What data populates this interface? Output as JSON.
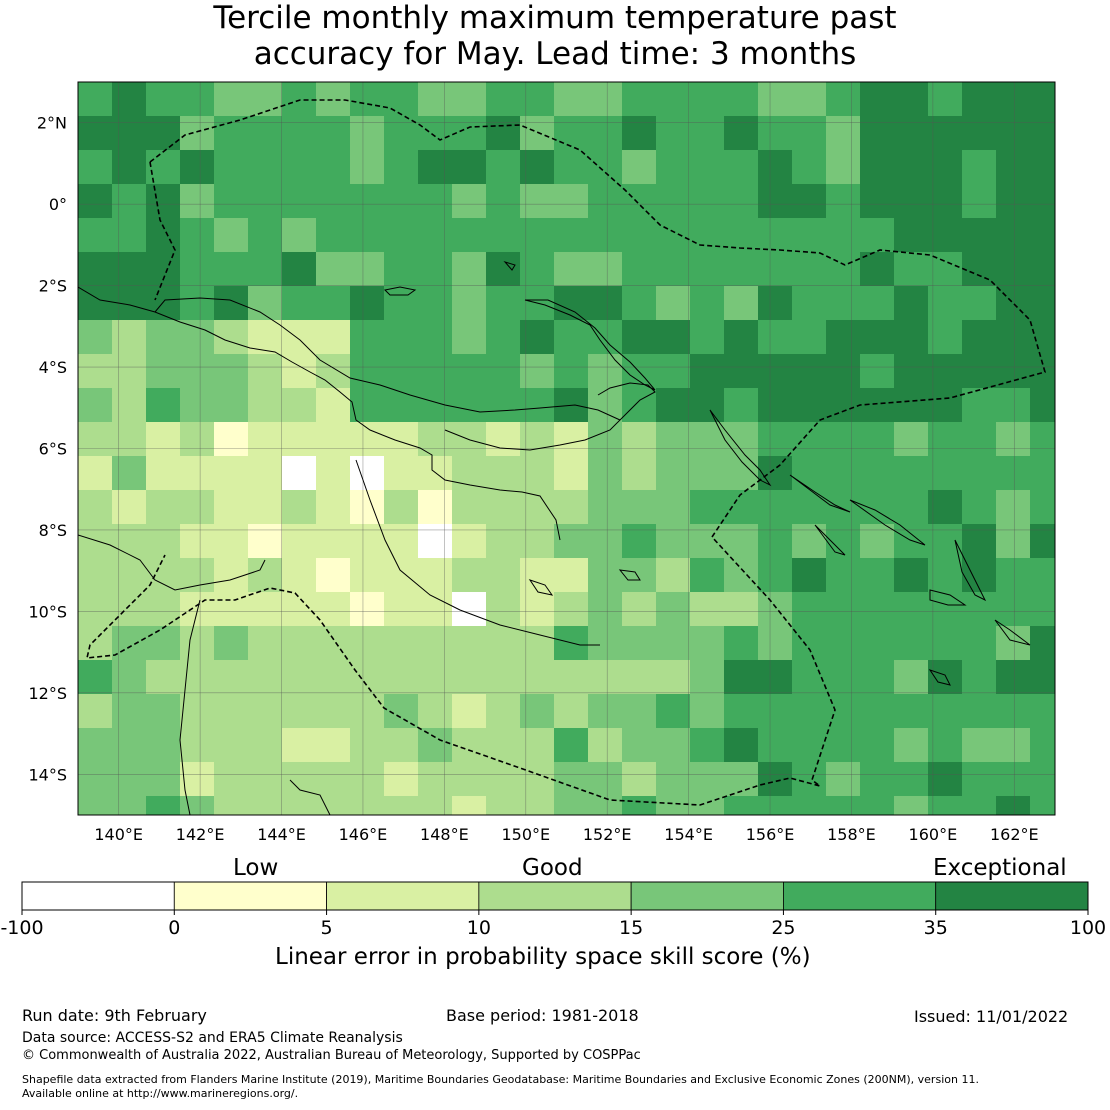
{
  "title": {
    "line1": "Tercile monthly maximum temperature past",
    "line2": "accuracy for May. Lead time: 3 months"
  },
  "axes": {
    "lon_labels": [
      "140°E",
      "142°E",
      "144°E",
      "146°E",
      "148°E",
      "150°E",
      "152°E",
      "154°E",
      "156°E",
      "158°E",
      "160°E",
      "162°E"
    ],
    "lat_labels": [
      "2°N",
      "0°",
      "2°S",
      "4°S",
      "6°S",
      "8°S",
      "10°S",
      "12°S",
      "14°S"
    ],
    "lon_range": [
      139,
      163
    ],
    "lat_range": [
      -15,
      3
    ]
  },
  "colorbar": {
    "categories": [
      "Low",
      "Good",
      "Exceptional"
    ],
    "ticks": [
      "-100",
      "0",
      "5",
      "10",
      "15",
      "25",
      "35",
      "100"
    ],
    "colors": [
      "#ffffff",
      "#ffffcc",
      "#d9f0a3",
      "#addd8e",
      "#78c679",
      "#41ab5d",
      "#238443"
    ],
    "label": "Linear error in probability space skill score (%)"
  },
  "footer": {
    "run_date": "Run date: 9th February",
    "base_period": "Base period: 1981-2018",
    "issued": "Issued: 11/01/2022",
    "data_source": "Data source: ACCESS-S2 and ERA5 Climate Reanalysis",
    "copyright": "© Commonwealth of Australia 2022, Australian Bureau of Meteorology, Supported by COSPPac",
    "shapefile_line1": "Shapefile data extracted from Flanders Marine Institute (2019), Maritime Boundaries Geodatabase: Maritime Boundaries and Exclusive Economic Zones (200NM), version 11.",
    "shapefile_line2": "Available online at http://www.marineregions.org/."
  }
}
